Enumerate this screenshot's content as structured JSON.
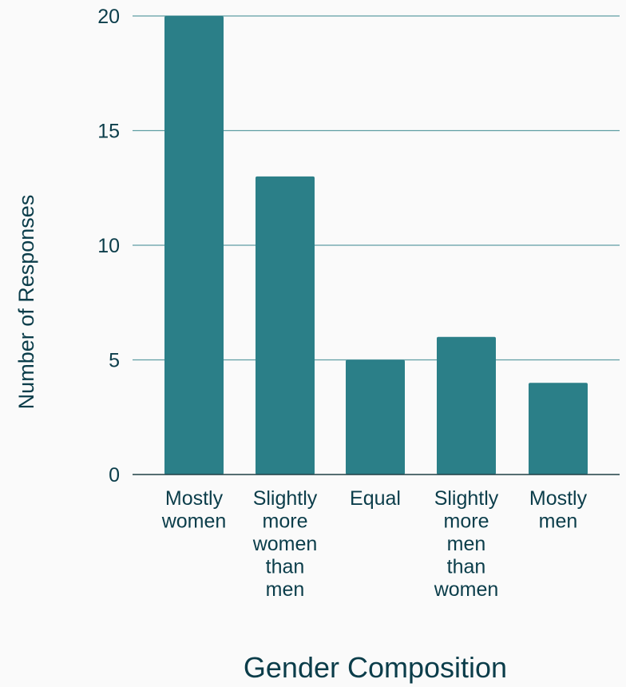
{
  "chart_data": {
    "type": "bar",
    "categories": [
      [
        "Mostly",
        "women"
      ],
      [
        "Slightly",
        "more",
        "women",
        "than",
        "men"
      ],
      [
        "Equal"
      ],
      [
        "Slightly",
        "more",
        "men",
        "than",
        "women"
      ],
      [
        "Mostly",
        "men"
      ]
    ],
    "values": [
      20,
      13,
      5,
      6,
      4
    ],
    "xlabel": "Gender Composition",
    "ylabel": "Number of Responses",
    "ylim": [
      0,
      20
    ],
    "yticks": [
      0,
      5,
      10,
      15,
      20
    ],
    "grid": true,
    "legend": "none",
    "colors": {
      "bar": "#2b7f88",
      "grid": "#5f9ea3",
      "axis": "#1f3f45",
      "text": "#0b3d4a",
      "background": "#fafafa"
    }
  }
}
